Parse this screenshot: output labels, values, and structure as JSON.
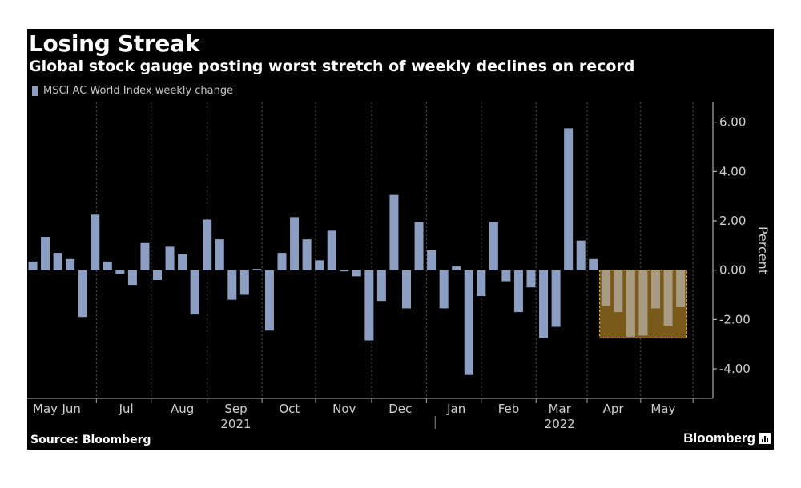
{
  "header": {
    "title": "Losing Streak",
    "subtitle": "Global stock gauge posting worst stretch of weekly declines on record"
  },
  "footer": {
    "source": "Source: Bloomberg",
    "brand": "Bloomberg"
  },
  "colors": {
    "background": "#000000",
    "bar": "#8c9fc3",
    "highlight_fill": "#7a5a1a",
    "highlight_border": "#d9a640",
    "highlighted_bar": "#a89b83",
    "text": "#ffffff",
    "axis_text": "#d0d0d0",
    "grid": "#555555"
  },
  "chart_data": {
    "type": "bar",
    "series": [
      {
        "name": "MSCI AC World Index weekly change",
        "values": [
          0.35,
          1.35,
          0.7,
          0.45,
          -1.9,
          2.25,
          0.35,
          -0.15,
          -0.6,
          1.1,
          -0.4,
          0.95,
          0.65,
          -1.8,
          2.05,
          1.25,
          -1.2,
          -1.0,
          0.05,
          -2.45,
          0.7,
          2.15,
          1.25,
          0.4,
          1.6,
          -0.05,
          -0.25,
          -2.85,
          -1.25,
          3.05,
          -1.55,
          1.95,
          0.8,
          -1.55,
          0.15,
          -4.25,
          -1.05,
          1.95,
          -0.45,
          -1.7,
          -0.7,
          -2.75,
          -2.3,
          5.75,
          1.2,
          0.45,
          -1.45,
          -1.7,
          -2.7,
          -2.65,
          -1.55,
          -2.25,
          -1.5
        ]
      }
    ],
    "ylabel": "Percent",
    "ylim": [
      -5.2,
      6.8
    ],
    "yticks": [
      6,
      4,
      2,
      0,
      -2,
      -4
    ],
    "ytick_labels": [
      "6.00",
      "4.00",
      "2.00",
      "0.00",
      "-2.00",
      "-4.00"
    ],
    "x_month_labels": [
      {
        "label": "May",
        "week": 1.0
      },
      {
        "label": "Jun",
        "week": 3.1
      },
      {
        "label": "Jul",
        "week": 7.5
      },
      {
        "label": "Aug",
        "week": 12.0
      },
      {
        "label": "Sep",
        "week": 16.3
      },
      {
        "label": "Oct",
        "week": 20.6
      },
      {
        "label": "Nov",
        "week": 25.0
      },
      {
        "label": "Dec",
        "week": 29.5
      },
      {
        "label": "Jan",
        "week": 34.0
      },
      {
        "label": "Feb",
        "week": 38.2
      },
      {
        "label": "Mar",
        "week": 42.3
      },
      {
        "label": "Apr",
        "week": 46.6
      },
      {
        "label": "May",
        "week": 50.6
      }
    ],
    "x_tick_weeks": [
      -0.5,
      5.1,
      9.5,
      14.0,
      18.4,
      22.7,
      27.2,
      31.6,
      36.0,
      40.4,
      44.5,
      48.8,
      53.0
    ],
    "years": [
      {
        "label": "2021",
        "week": 16.3
      },
      {
        "label": "2022",
        "week": 42.3
      }
    ],
    "year_divider_week": 32.3,
    "highlight": {
      "start_index": 45.5,
      "end_index": 52.5,
      "ymin": -2.75,
      "ymax": 0
    },
    "grid": "vertical dashed",
    "legend": "top-left"
  }
}
